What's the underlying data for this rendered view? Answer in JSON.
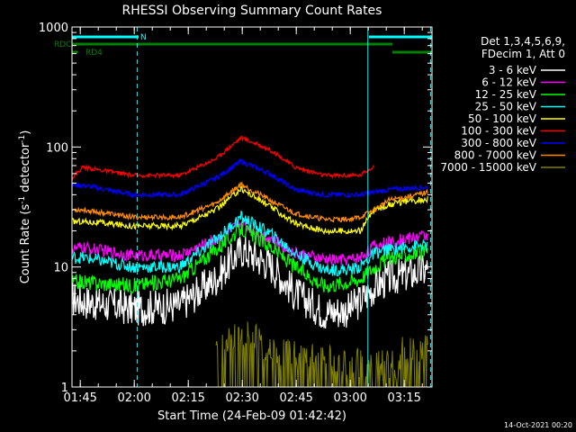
{
  "chart_data": {
    "type": "line",
    "title": "RHESSI Observing Summary Count Rates",
    "xlabel": "Start Time (24-Feb-09 01:42:42)",
    "ylabel_parts": [
      "Count Rate (s",
      "-1",
      " detector",
      "-1",
      ")"
    ],
    "yscale": "log",
    "ylim": [
      1,
      1000
    ],
    "xlim_minutes": [
      0,
      100
    ],
    "x_ticks": [
      {
        "label": "01:45",
        "minute": 2.3
      },
      {
        "label": "02:00",
        "minute": 17.3
      },
      {
        "label": "02:15",
        "minute": 32.3
      },
      {
        "label": "02:30",
        "minute": 47.3
      },
      {
        "label": "02:45",
        "minute": 62.3
      },
      {
        "label": "03:00",
        "minute": 77.3
      },
      {
        "label": "03:15",
        "minute": 92.3
      }
    ],
    "y_ticks": [
      {
        "label": "1",
        "value": 1
      },
      {
        "label": "10",
        "value": 10
      },
      {
        "label": "100",
        "value": 100
      },
      {
        "label": "1000",
        "value": 1000
      }
    ],
    "legend": {
      "header": [
        "Det 1,3,4,5,6,9,",
        "FDecim 1, Att 0"
      ],
      "placement": "right"
    },
    "series": [
      {
        "name": "3 - 6 keV",
        "color": "#ffffff",
        "x": [
          0,
          3,
          17,
          30,
          40,
          47,
          55,
          62,
          70,
          77,
          80,
          84,
          88,
          92,
          96,
          99
        ],
        "y": [
          5.5,
          5.2,
          4.5,
          4.8,
          8,
          14,
          10.5,
          6,
          4.2,
          4.4,
          5.2,
          6.8,
          8,
          8.5,
          9,
          9.5
        ]
      },
      {
        "name": "6 - 12 keV",
        "color": "#ff00ff",
        "x": [
          0,
          3,
          17,
          30,
          40,
          47,
          55,
          62,
          70,
          77,
          80,
          84,
          88,
          92,
          96,
          99
        ],
        "y": [
          14,
          14.5,
          12.5,
          12.5,
          17,
          23,
          17.5,
          13,
          11.5,
          11.5,
          12,
          15,
          16,
          17,
          18,
          18.5
        ]
      },
      {
        "name": "12 - 25 keV",
        "color": "#00ff00",
        "x": [
          0,
          3,
          17,
          30,
          40,
          47,
          55,
          62,
          70,
          77,
          80,
          84,
          88,
          92,
          96,
          99
        ],
        "y": [
          7.5,
          7.5,
          7,
          8,
          14,
          21,
          15,
          10,
          7,
          7.5,
          8,
          10,
          12,
          12.5,
          13,
          13.5
        ]
      },
      {
        "name": "25 - 50 keV",
        "color": "#00ffff",
        "x": [
          0,
          3,
          17,
          30,
          40,
          47,
          55,
          62,
          70,
          77,
          80,
          84,
          88,
          92,
          96,
          99
        ],
        "y": [
          12,
          12,
          10,
          10,
          17,
          26,
          19,
          13,
          9.5,
          9.5,
          10,
          13,
          14,
          14.5,
          15,
          15
        ]
      },
      {
        "name": "50 - 100 keV",
        "color": "#ffff00",
        "x": [
          0,
          3,
          17,
          30,
          40,
          47,
          55,
          62,
          70,
          77,
          80,
          84,
          88,
          92,
          96,
          99
        ],
        "y": [
          24,
          24,
          22,
          22,
          30,
          45,
          32,
          23,
          20,
          20,
          20,
          30,
          33,
          35,
          36,
          37
        ]
      },
      {
        "name": "100 - 300 keV",
        "color": "#ff0000",
        "x": [
          0,
          3,
          17,
          30,
          40,
          47,
          55,
          62,
          70,
          77,
          80,
          84,
          88,
          92,
          96,
          99
        ],
        "y": [
          55,
          68,
          58,
          58,
          80,
          120,
          95,
          68,
          58,
          58,
          58,
          70,
          null,
          null,
          null,
          null
        ]
      },
      {
        "name": "300 - 800 keV",
        "color": "#0000ff",
        "x": [
          0,
          3,
          17,
          30,
          40,
          47,
          55,
          62,
          70,
          77,
          80,
          84,
          88,
          92,
          96,
          99
        ],
        "y": [
          48,
          48,
          40,
          40,
          55,
          76,
          60,
          44,
          40,
          40,
          40,
          42,
          44,
          45,
          46,
          46
        ]
      },
      {
        "name": "800 - 7000 keV",
        "color": "#ff8c00",
        "x": [
          0,
          3,
          17,
          30,
          40,
          47,
          55,
          62,
          70,
          77,
          80,
          84,
          88,
          92,
          96,
          99
        ],
        "y": [
          30,
          30,
          26,
          26,
          34,
          49,
          36,
          28,
          25,
          25,
          26,
          30,
          36,
          38,
          40,
          42
        ]
      },
      {
        "name": "7000 - 15000 keV",
        "color": "#808000",
        "x": [
          40,
          43,
          47,
          50,
          55,
          90,
          92,
          94,
          96,
          98,
          99
        ],
        "y": [
          2,
          2.5,
          2.8,
          2.8,
          2,
          1.5,
          2,
          2,
          2,
          2,
          2
        ]
      }
    ],
    "flags": [
      {
        "label": "N",
        "color": "#00ffff",
        "start_minute": 0,
        "end_minute": 18.5,
        "row": 1
      },
      {
        "label": "",
        "color": "#00ffff",
        "start_minute": 82.5,
        "end_minute": 100,
        "row": 1
      },
      {
        "label": "RDC",
        "color": "#008000",
        "start_minute": 0,
        "end_minute": 89,
        "row": 2
      },
      {
        "label": "RD4",
        "color": "#008000",
        "start_minute": 0,
        "end_minute": 1.6,
        "row": 3
      },
      {
        "label": "",
        "color": "#008000",
        "start_minute": 89,
        "end_minute": 100,
        "row": 3
      }
    ],
    "vertical_lines": [
      {
        "minute": 0,
        "style": "solid",
        "color": "#00ffff"
      },
      {
        "minute": 18.1,
        "style": "dashed",
        "color": "#00ffff"
      },
      {
        "minute": 82.2,
        "style": "solid",
        "color": "#00ffff"
      },
      {
        "minute": 99.6,
        "style": "dashed",
        "color": "#00ffff"
      }
    ]
  },
  "footer": {
    "timestamp": "14-Oct-2021 00:20"
  }
}
